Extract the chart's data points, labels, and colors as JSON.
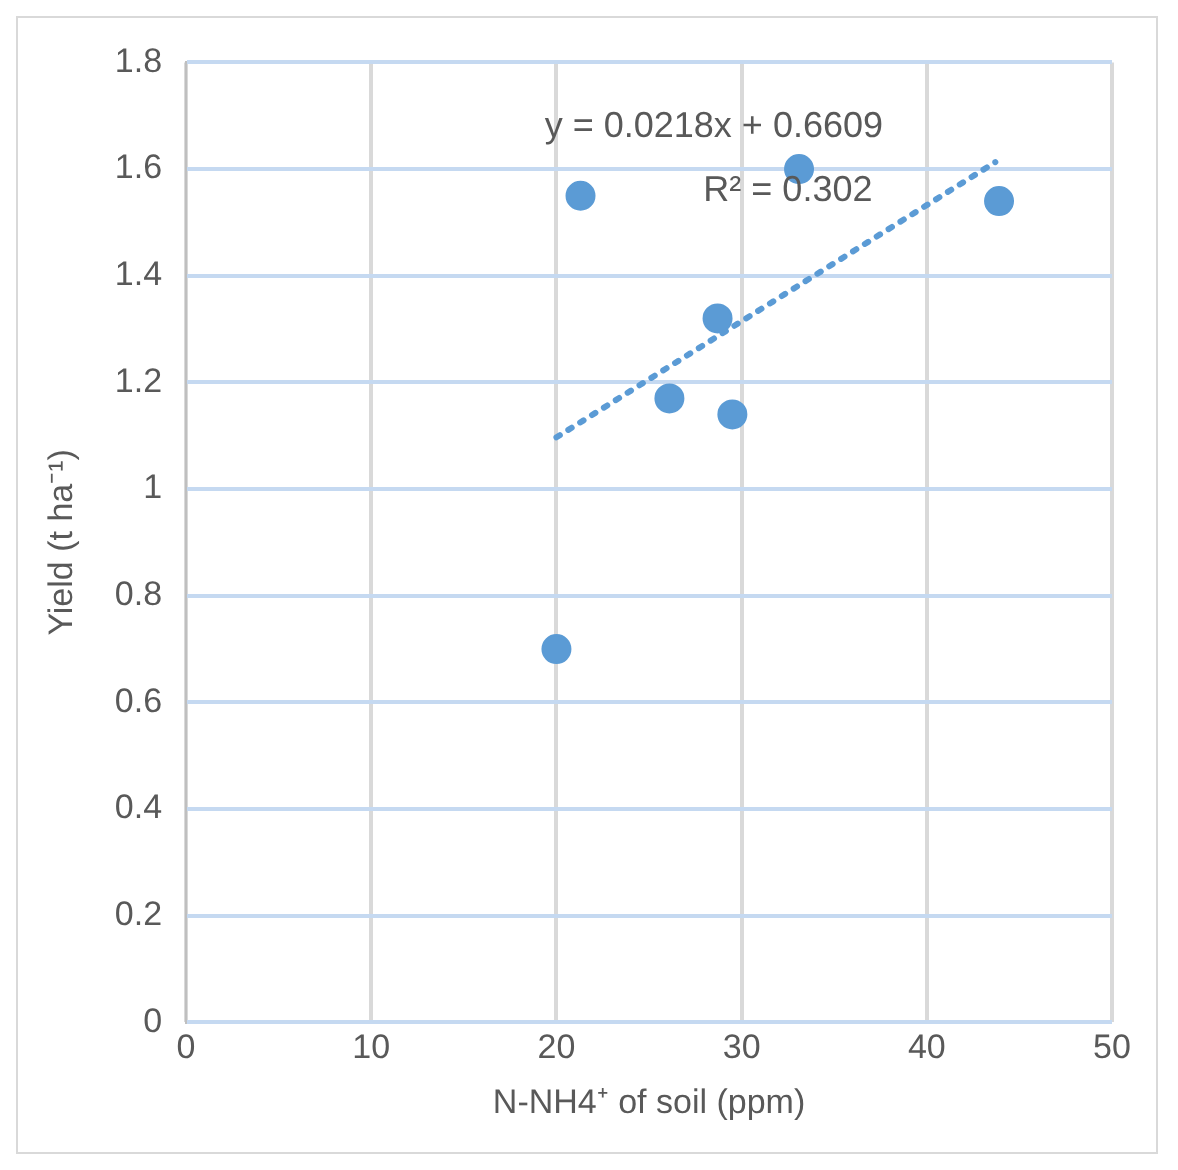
{
  "chart_data": {
    "type": "scatter",
    "xlabel": "N-NH4⁺ of soil (ppm)",
    "ylabel": "Yield (t ha⁻¹)",
    "x": [
      20.0,
      21.3,
      26.1,
      28.7,
      29.5,
      33.1,
      43.9
    ],
    "xlim": [
      0,
      50
    ],
    "xticks": [
      0,
      10,
      20,
      30,
      40,
      50
    ],
    "ylim": [
      0,
      1.8
    ],
    "yticks": [
      0,
      0.2,
      0.4,
      0.6,
      0.8,
      1,
      1.2,
      1.4,
      1.6,
      1.8
    ],
    "series": [
      {
        "type": "scatter",
        "color": "#5b9bd5",
        "marker": "circle",
        "values": [
          0.7,
          1.55,
          1.17,
          1.32,
          1.14,
          1.6,
          1.54
        ]
      },
      {
        "type": "line",
        "color": "#5b9bd5",
        "line_style": "dotted",
        "marker": "none",
        "x": [
          20,
          43.7
        ],
        "values": [
          1.097,
          1.613
        ]
      }
    ],
    "annotations": [
      "y = 0.0218x + 0.6609",
      "R² = 0.302"
    ],
    "grid": true,
    "legend": false
  }
}
